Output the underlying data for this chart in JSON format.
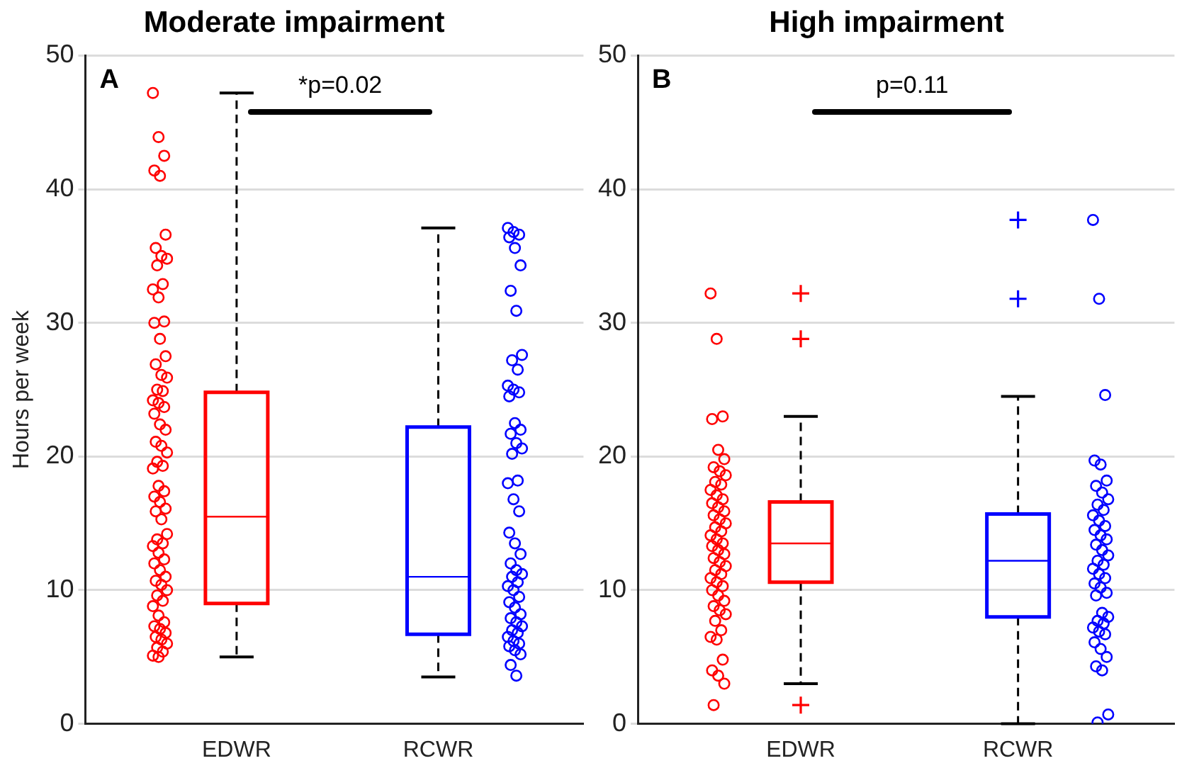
{
  "chart_data": [
    {
      "type": "box",
      "title": "Moderate impairment",
      "ylabel": "Hours per week",
      "categories": [
        "EDWR",
        "RCWR"
      ],
      "ylim": [
        0,
        50
      ],
      "yticks": [
        0,
        10,
        20,
        30,
        40,
        50
      ],
      "grid": "y",
      "legend": false,
      "annotations": [
        "A",
        "*p=0.02"
      ],
      "colors": [
        "#ff0000",
        "#0000ff"
      ],
      "boxes": [
        {
          "low": 5,
          "q1": 9,
          "median": 15.5,
          "q3": 24.8,
          "high": 47.2
        },
        {
          "low": 3.5,
          "q1": 6.7,
          "median": 11,
          "q3": 22.2,
          "high": 37.1
        }
      ],
      "series": [
        {
          "type": "scatter",
          "marker": "circle",
          "color": "#ff0000",
          "x": [
            "EDWR",
            "EDWR",
            "EDWR",
            "EDWR",
            "EDWR",
            "EDWR",
            "EDWR",
            "EDWR",
            "EDWR",
            "EDWR",
            "EDWR",
            "EDWR",
            "EDWR",
            "EDWR",
            "EDWR",
            "EDWR",
            "EDWR",
            "EDWR",
            "EDWR",
            "EDWR",
            "EDWR",
            "EDWR",
            "EDWR",
            "EDWR",
            "EDWR",
            "EDWR",
            "EDWR",
            "EDWR",
            "EDWR",
            "EDWR",
            "EDWR",
            "EDWR",
            "EDWR",
            "EDWR",
            "EDWR",
            "EDWR",
            "EDWR",
            "EDWR",
            "EDWR",
            "EDWR",
            "EDWR",
            "EDWR",
            "EDWR",
            "EDWR",
            "EDWR",
            "EDWR",
            "EDWR",
            "EDWR",
            "EDWR",
            "EDWR",
            "EDWR",
            "EDWR",
            "EDWR",
            "EDWR",
            "EDWR",
            "EDWR",
            "EDWR",
            "EDWR",
            "EDWR",
            "EDWR",
            "EDWR",
            "EDWR",
            "EDWR",
            "EDWR",
            "EDWR",
            "EDWR",
            "EDWR",
            "EDWR"
          ],
          "values": [
            47.2,
            43.9,
            42.5,
            41.4,
            41.0,
            36.6,
            35.6,
            35.0,
            34.8,
            34.3,
            32.9,
            32.5,
            31.9,
            30.1,
            30.0,
            28.8,
            27.5,
            26.9,
            26.1,
            25.9,
            25.0,
            24.9,
            24.2,
            24.0,
            23.7,
            23.2,
            22.4,
            22.0,
            21.1,
            20.8,
            20.3,
            19.6,
            19.3,
            19.1,
            17.8,
            17.4,
            17.0,
            16.6,
            16.1,
            15.9,
            15.3,
            14.2,
            13.8,
            13.5,
            13.3,
            12.8,
            12.3,
            12.0,
            11.5,
            11.0,
            10.7,
            10.4,
            10.0,
            9.6,
            9.2,
            8.8,
            8.1,
            7.6,
            7.3,
            7.1,
            6.8,
            6.5,
            6.3,
            6.0,
            5.7,
            5.4,
            5.1,
            5.0
          ]
        },
        {
          "type": "scatter",
          "marker": "circle",
          "color": "#0000ff",
          "x": [
            "RCWR",
            "RCWR",
            "RCWR",
            "RCWR",
            "RCWR",
            "RCWR",
            "RCWR",
            "RCWR",
            "RCWR",
            "RCWR",
            "RCWR",
            "RCWR",
            "RCWR",
            "RCWR",
            "RCWR",
            "RCWR",
            "RCWR",
            "RCWR",
            "RCWR",
            "RCWR",
            "RCWR",
            "RCWR",
            "RCWR",
            "RCWR",
            "RCWR",
            "RCWR",
            "RCWR",
            "RCWR",
            "RCWR",
            "RCWR",
            "RCWR",
            "RCWR",
            "RCWR",
            "RCWR",
            "RCWR",
            "RCWR",
            "RCWR",
            "RCWR",
            "RCWR",
            "RCWR",
            "RCWR",
            "RCWR",
            "RCWR",
            "RCWR",
            "RCWR",
            "RCWR",
            "RCWR",
            "RCWR",
            "RCWR",
            "RCWR",
            "RCWR",
            "RCWR"
          ],
          "values": [
            37.1,
            36.8,
            36.6,
            36.4,
            35.6,
            34.3,
            32.4,
            30.9,
            27.6,
            27.2,
            26.5,
            25.3,
            25.0,
            24.8,
            24.5,
            22.5,
            22.0,
            21.7,
            21.0,
            20.6,
            20.2,
            18.2,
            18.0,
            16.8,
            15.9,
            14.3,
            13.5,
            12.7,
            12.0,
            11.5,
            11.2,
            11.0,
            10.6,
            10.3,
            10.0,
            9.5,
            9.1,
            8.7,
            8.2,
            7.9,
            7.6,
            7.3,
            7.0,
            6.8,
            6.5,
            6.2,
            6.0,
            5.8,
            5.5,
            5.2,
            4.4,
            3.6
          ]
        }
      ]
    },
    {
      "type": "box",
      "title": "High impairment",
      "categories": [
        "EDWR",
        "RCWR"
      ],
      "ylim": [
        0,
        50
      ],
      "yticks": [
        0,
        10,
        20,
        30,
        40,
        50
      ],
      "grid": "y",
      "legend": false,
      "annotations": [
        "B",
        "p=0.11"
      ],
      "colors": [
        "#ff0000",
        "#0000ff"
      ],
      "boxes": [
        {
          "low": 3,
          "q1": 10.6,
          "median": 13.5,
          "q3": 16.6,
          "high": 23,
          "outliers": [
            1.4,
            28.8,
            32.2
          ]
        },
        {
          "low": 0,
          "q1": 8,
          "median": 12.2,
          "q3": 15.7,
          "high": 24.5,
          "outliers": [
            31.8,
            37.7
          ]
        }
      ],
      "series": [
        {
          "type": "scatter",
          "marker": "circle",
          "color": "#ff0000",
          "x": [
            "EDWR",
            "EDWR",
            "EDWR",
            "EDWR",
            "EDWR",
            "EDWR",
            "EDWR",
            "EDWR",
            "EDWR",
            "EDWR",
            "EDWR",
            "EDWR",
            "EDWR",
            "EDWR",
            "EDWR",
            "EDWR",
            "EDWR",
            "EDWR",
            "EDWR",
            "EDWR",
            "EDWR",
            "EDWR",
            "EDWR",
            "EDWR",
            "EDWR",
            "EDWR",
            "EDWR",
            "EDWR",
            "EDWR",
            "EDWR",
            "EDWR",
            "EDWR",
            "EDWR",
            "EDWR",
            "EDWR",
            "EDWR",
            "EDWR",
            "EDWR",
            "EDWR",
            "EDWR",
            "EDWR",
            "EDWR",
            "EDWR",
            "EDWR",
            "EDWR",
            "EDWR",
            "EDWR",
            "EDWR",
            "EDWR",
            "EDWR",
            "EDWR"
          ],
          "values": [
            32.2,
            28.8,
            23.0,
            22.8,
            20.5,
            19.8,
            19.2,
            18.9,
            18.6,
            18.1,
            17.9,
            17.5,
            17.1,
            16.8,
            16.5,
            16.2,
            15.9,
            15.6,
            15.3,
            15.0,
            14.7,
            14.4,
            14.1,
            13.8,
            13.5,
            13.3,
            13.0,
            12.7,
            12.4,
            12.1,
            11.8,
            11.5,
            11.2,
            10.9,
            10.6,
            10.3,
            10.0,
            9.6,
            9.2,
            8.8,
            8.5,
            8.2,
            7.7,
            7.0,
            6.5,
            6.3,
            4.8,
            4.0,
            3.6,
            3.0,
            1.4
          ]
        },
        {
          "type": "scatter",
          "marker": "circle",
          "color": "#0000ff",
          "x": [
            "RCWR",
            "RCWR",
            "RCWR",
            "RCWR",
            "RCWR",
            "RCWR",
            "RCWR",
            "RCWR",
            "RCWR",
            "RCWR",
            "RCWR",
            "RCWR",
            "RCWR",
            "RCWR",
            "RCWR",
            "RCWR",
            "RCWR",
            "RCWR",
            "RCWR",
            "RCWR",
            "RCWR",
            "RCWR",
            "RCWR",
            "RCWR",
            "RCWR",
            "RCWR",
            "RCWR",
            "RCWR",
            "RCWR",
            "RCWR",
            "RCWR",
            "RCWR",
            "RCWR",
            "RCWR",
            "RCWR",
            "RCWR",
            "RCWR",
            "RCWR",
            "RCWR",
            "RCWR",
            "RCWR",
            "RCWR",
            "RCWR"
          ],
          "values": [
            37.7,
            31.8,
            24.6,
            19.7,
            19.4,
            18.2,
            17.8,
            17.3,
            16.8,
            16.4,
            16.0,
            15.6,
            15.2,
            14.8,
            14.5,
            14.1,
            13.8,
            13.4,
            13.0,
            12.6,
            12.2,
            11.9,
            11.6,
            11.2,
            10.9,
            10.5,
            10.2,
            9.8,
            9.6,
            8.3,
            8.0,
            7.7,
            7.5,
            7.2,
            6.9,
            6.7,
            6.1,
            5.6,
            5.0,
            4.3,
            4.0,
            0.7,
            0.1
          ]
        }
      ]
    }
  ]
}
